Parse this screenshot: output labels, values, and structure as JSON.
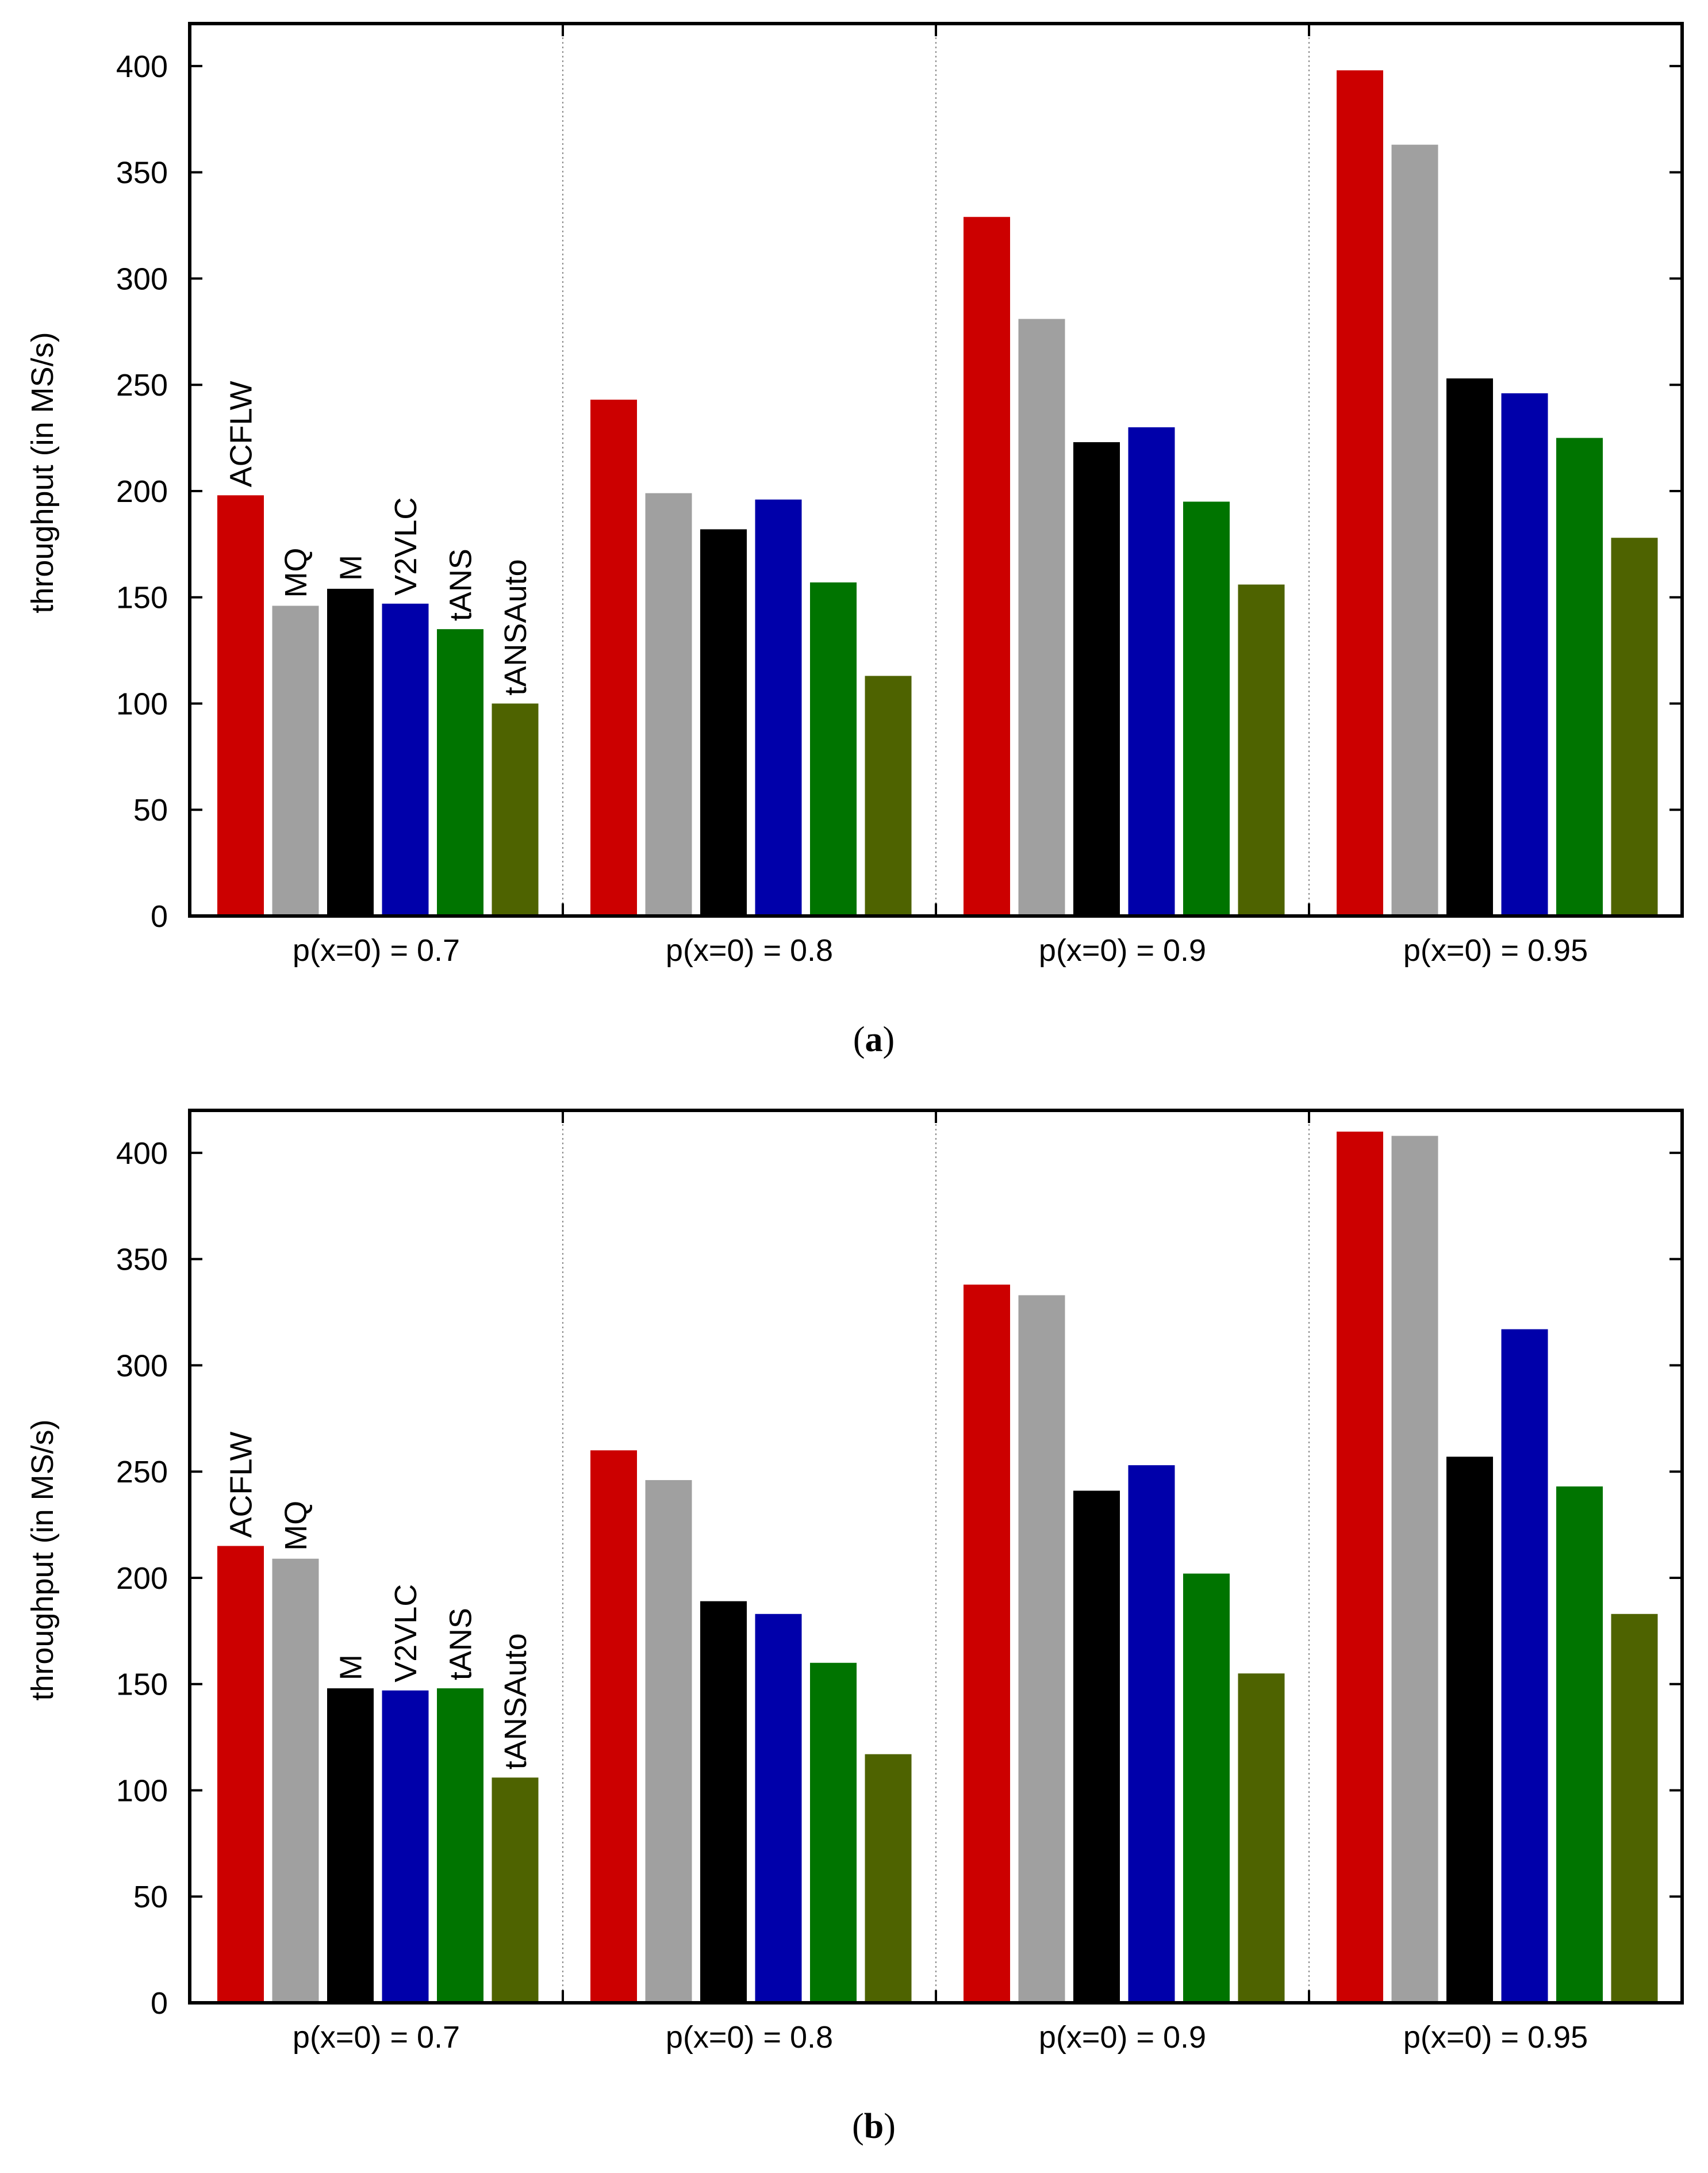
{
  "chart_data": [
    {
      "panel": "a",
      "type": "bar",
      "caption": "a",
      "ylabel": "throughput (in MS/s)",
      "xlabel": "",
      "ylim": [
        0,
        420
      ],
      "yticks": [
        0,
        50,
        100,
        150,
        200,
        250,
        300,
        350,
        400
      ],
      "grid": false,
      "categories": [
        "p(x=0) = 0.7",
        "p(x=0) = 0.8",
        "p(x=0) = 0.9",
        "p(x=0) = 0.95"
      ],
      "series": [
        {
          "name": "ACFLW",
          "color": "#cc0000",
          "values": [
            198,
            243,
            329,
            398
          ]
        },
        {
          "name": "MQ",
          "color": "#a0a0a0",
          "values": [
            146,
            199,
            281,
            363
          ]
        },
        {
          "name": "M",
          "color": "#000000",
          "values": [
            154,
            182,
            223,
            253
          ]
        },
        {
          "name": "V2VLC",
          "color": "#0000aa",
          "values": [
            147,
            196,
            230,
            246
          ]
        },
        {
          "name": "tANS",
          "color": "#007400",
          "values": [
            135,
            157,
            195,
            225
          ]
        },
        {
          "name": "tANSAuto",
          "color": "#4e6300",
          "values": [
            100,
            113,
            156,
            178
          ]
        }
      ]
    },
    {
      "panel": "b",
      "type": "bar",
      "caption": "b",
      "ylabel": "throughput (in MS/s)",
      "xlabel": "",
      "ylim": [
        0,
        420
      ],
      "yticks": [
        0,
        50,
        100,
        150,
        200,
        250,
        300,
        350,
        400
      ],
      "grid": false,
      "categories": [
        "p(x=0) = 0.7",
        "p(x=0) = 0.8",
        "p(x=0) = 0.9",
        "p(x=0) = 0.95"
      ],
      "series": [
        {
          "name": "ACFLW",
          "color": "#cc0000",
          "values": [
            215,
            260,
            338,
            410
          ]
        },
        {
          "name": "MQ",
          "color": "#a0a0a0",
          "values": [
            209,
            246,
            333,
            408
          ]
        },
        {
          "name": "M",
          "color": "#000000",
          "values": [
            148,
            189,
            241,
            257
          ]
        },
        {
          "name": "V2VLC",
          "color": "#0000aa",
          "values": [
            147,
            183,
            253,
            317
          ]
        },
        {
          "name": "tANS",
          "color": "#007400",
          "values": [
            148,
            160,
            202,
            243
          ]
        },
        {
          "name": "tANSAuto",
          "color": "#4e6300",
          "values": [
            106,
            117,
            155,
            183
          ]
        }
      ]
    }
  ]
}
